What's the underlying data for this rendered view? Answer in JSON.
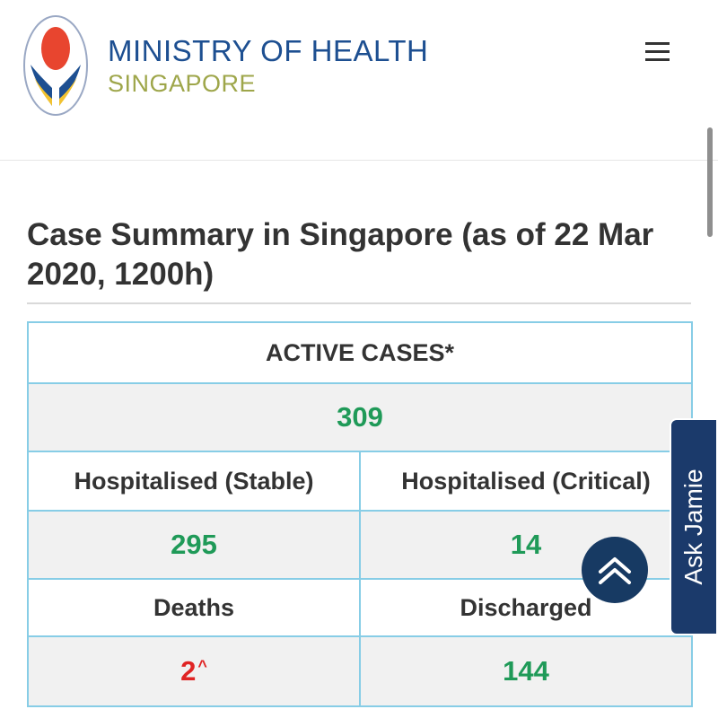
{
  "header": {
    "org_name": "MINISTRY OF HEALTH",
    "org_country": "SINGAPORE",
    "logo_icon": "moh-logo-icon",
    "menu_icon": "hamburger-menu-icon"
  },
  "page": {
    "title": "Case Summary in Singapore (as of 22 Mar 2020, 1200h)"
  },
  "summary": {
    "active_label": "ACTIVE CASES*",
    "active_value": "309",
    "stable_label": "Hospitalised (Stable)",
    "critical_label": "Hospitalised (Critical)",
    "stable_value": "295",
    "critical_value": "14",
    "deaths_label": "Deaths",
    "discharged_label": "Discharged",
    "deaths_value": "2",
    "deaths_marker": "^",
    "discharged_value": "144"
  },
  "widgets": {
    "ask_label": "Ask Jamie",
    "back_to_top_icon": "double-chevron-up-icon"
  },
  "colors": {
    "brand_blue": "#1d4f91",
    "brand_green": "#9ea64a",
    "value_green": "#1f9a58",
    "value_red": "#e02424",
    "table_border": "#87cde6",
    "widget_navy": "#1b3a6b"
  }
}
